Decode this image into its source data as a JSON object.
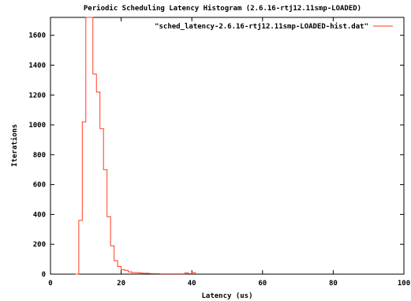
{
  "chart_data": {
    "type": "line",
    "title": "Periodic Scheduling Latency Histogram (2.6.16-rtj12.11smp-LOADED)",
    "xlabel": "Latency (us)",
    "ylabel": "Iterations",
    "xlim": [
      0,
      100
    ],
    "ylim": [
      0,
      1720
    ],
    "xticks": [
      0,
      20,
      40,
      60,
      80,
      100
    ],
    "yticks": [
      0,
      200,
      400,
      600,
      800,
      1000,
      1200,
      1400,
      1600
    ],
    "legend_position": "top-right",
    "grid": false,
    "series": [
      {
        "name": "\"sched_latency-2.6.16-rtj12.11smp-LOADED-hist.dat\"",
        "color": "#ff3b1f",
        "style": "steps",
        "x": [
          7,
          8,
          9,
          10,
          11,
          12,
          13,
          14,
          15,
          16,
          17,
          18,
          19,
          20,
          21,
          22,
          23,
          24,
          25,
          26,
          27,
          28,
          29,
          30,
          31,
          32,
          33,
          34,
          35,
          36,
          37,
          38,
          39,
          40,
          41
        ],
        "y": [
          0,
          360,
          1020,
          1720,
          1720,
          1340,
          1220,
          975,
          700,
          385,
          190,
          90,
          50,
          30,
          25,
          15,
          10,
          10,
          8,
          6,
          5,
          4,
          3,
          3,
          2,
          2,
          2,
          2,
          2,
          2,
          2,
          8,
          3,
          10,
          0
        ]
      }
    ]
  }
}
